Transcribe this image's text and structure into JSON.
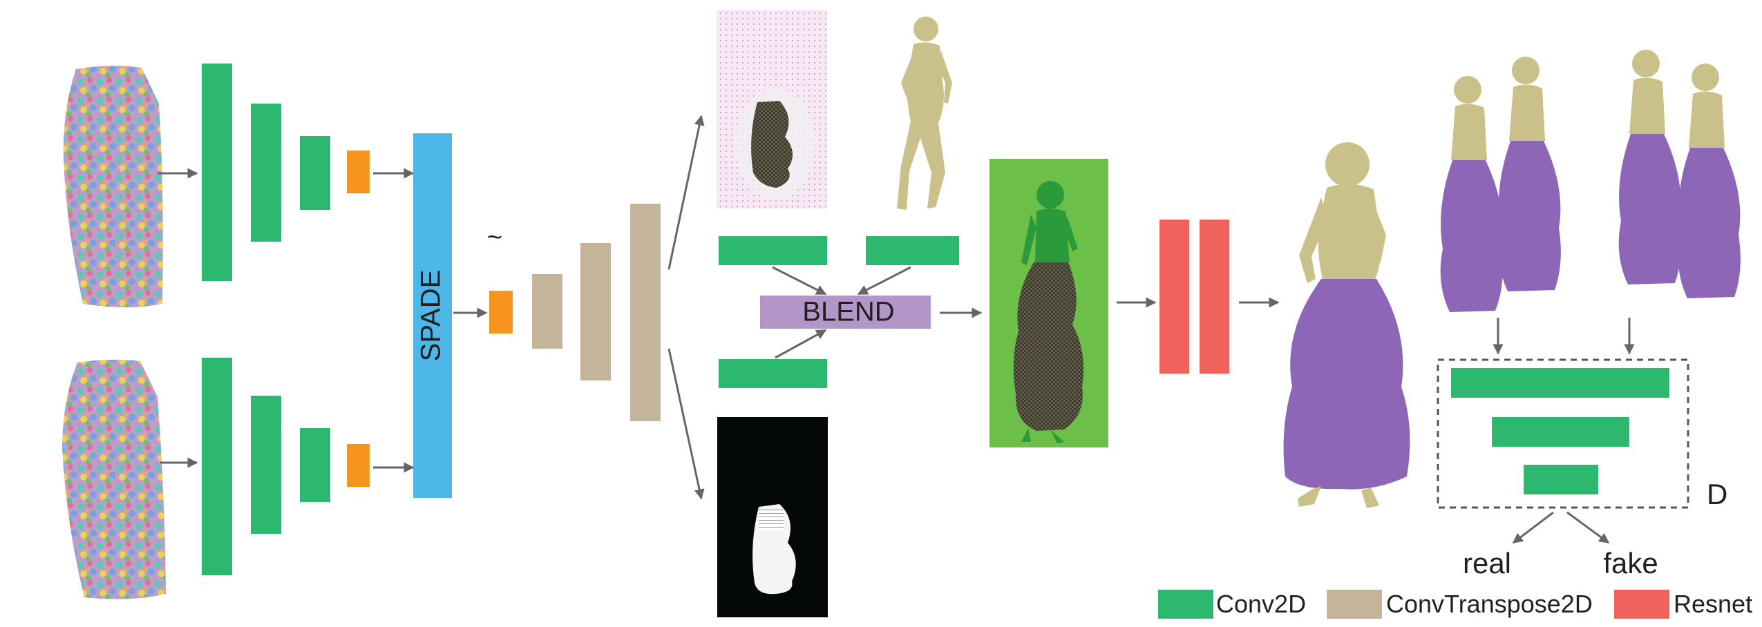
{
  "labels": {
    "spade": "SPADE",
    "tilde": "~",
    "blend": "BLEND",
    "discriminator": "D",
    "real": "real",
    "fake": "fake"
  },
  "legend": [
    {
      "label": "Conv2D",
      "color": "#2db870"
    },
    {
      "label": "ConvTranspose2D",
      "color": "#c4b59a"
    },
    {
      "label": "Resnet",
      "color": "#f0635c"
    }
  ],
  "colors": {
    "conv2d": "#2db870",
    "conv_transpose": "#c4b59a",
    "resnet": "#f0635c",
    "spade": "#4db8e8",
    "latent": "#f7941d",
    "blend": "#b296c8",
    "render_bg": "#6cc04a",
    "cloth": "#8e66b8",
    "body": "#c9c08a",
    "arrow": "#666666"
  },
  "icons": [
    "noise-texture-icon",
    "mannequin-icon",
    "clothed-mannequin-icon",
    "mask-icon"
  ]
}
